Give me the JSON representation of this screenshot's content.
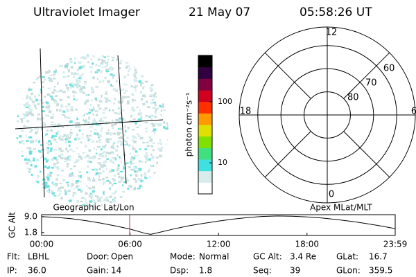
{
  "header": {
    "instrument": "Ultraviolet Imager",
    "date": "21 May 07",
    "time": "05:58:26 UT"
  },
  "colorbar": {
    "label": "photon cm⁻²s⁻¹",
    "scale": "log",
    "lim": [
      3.1,
      575
    ],
    "ticks": [
      10,
      100
    ],
    "colors": [
      "#ffffff",
      "#d8ecec",
      "#40e0e0",
      "#40e080",
      "#80e000",
      "#e0e000",
      "#ff9900",
      "#ff3000",
      "#d00020",
      "#800040",
      "#300040",
      "#000000"
    ]
  },
  "polar": {
    "mlt_ticks": [
      12,
      6,
      0,
      18
    ],
    "mlat_ticks": [
      80,
      70,
      60
    ],
    "mlat_lim": [
      90,
      52
    ]
  },
  "chart_data": {
    "type": "line",
    "y_label": "GC Alt",
    "left_label": "Geographic Lat/Lon",
    "right_label": "Apex MLat/MLT",
    "x": [
      0,
      1,
      2,
      3,
      4,
      5,
      6,
      7,
      7.4,
      8,
      9,
      10,
      11,
      12,
      13,
      14,
      15,
      16,
      17,
      18,
      19,
      20,
      21,
      22,
      23,
      23.983
    ],
    "values": [
      9.0,
      8.7,
      8.1,
      7.2,
      6.1,
      4.8,
      3.4,
      1.5,
      1.0,
      1.9,
      3.5,
      4.9,
      6.0,
      7.0,
      7.9,
      8.6,
      9.1,
      9.3,
      9.2,
      8.9,
      8.4,
      7.7,
      6.9,
      5.9,
      4.8,
      3.6
    ],
    "xlim": [
      0,
      23.983
    ],
    "xticks": [
      {
        "value": 0,
        "label": "00:00"
      },
      {
        "value": 6,
        "label": "06:00"
      },
      {
        "value": 12,
        "label": "12:00"
      },
      {
        "value": 18,
        "label": "18:00"
      },
      {
        "value": 23.983,
        "label": "23:59"
      }
    ],
    "ylim": [
      0.5,
      9.9
    ],
    "yticks": [
      {
        "value": 9,
        "label": "9.0"
      },
      1.8
    ],
    "color": "#000000",
    "marker_x": 5.974,
    "marker_color": "#b03040"
  },
  "footer": {
    "rows": [
      [
        [
          "Flt:",
          "LBHL"
        ],
        [
          "Door:",
          "Open"
        ],
        [
          "Mode:",
          "Normal"
        ],
        [
          "GC Alt:",
          "3.4 Re"
        ],
        [
          "GLat:",
          "16.7"
        ]
      ],
      [
        [
          "IP:",
          "36.0"
        ],
        [
          "Gain:",
          "14"
        ],
        [
          "Dsp:",
          "1.8"
        ],
        [
          "Seq:",
          "39"
        ],
        [
          "GLon:",
          "359.5"
        ]
      ]
    ]
  }
}
